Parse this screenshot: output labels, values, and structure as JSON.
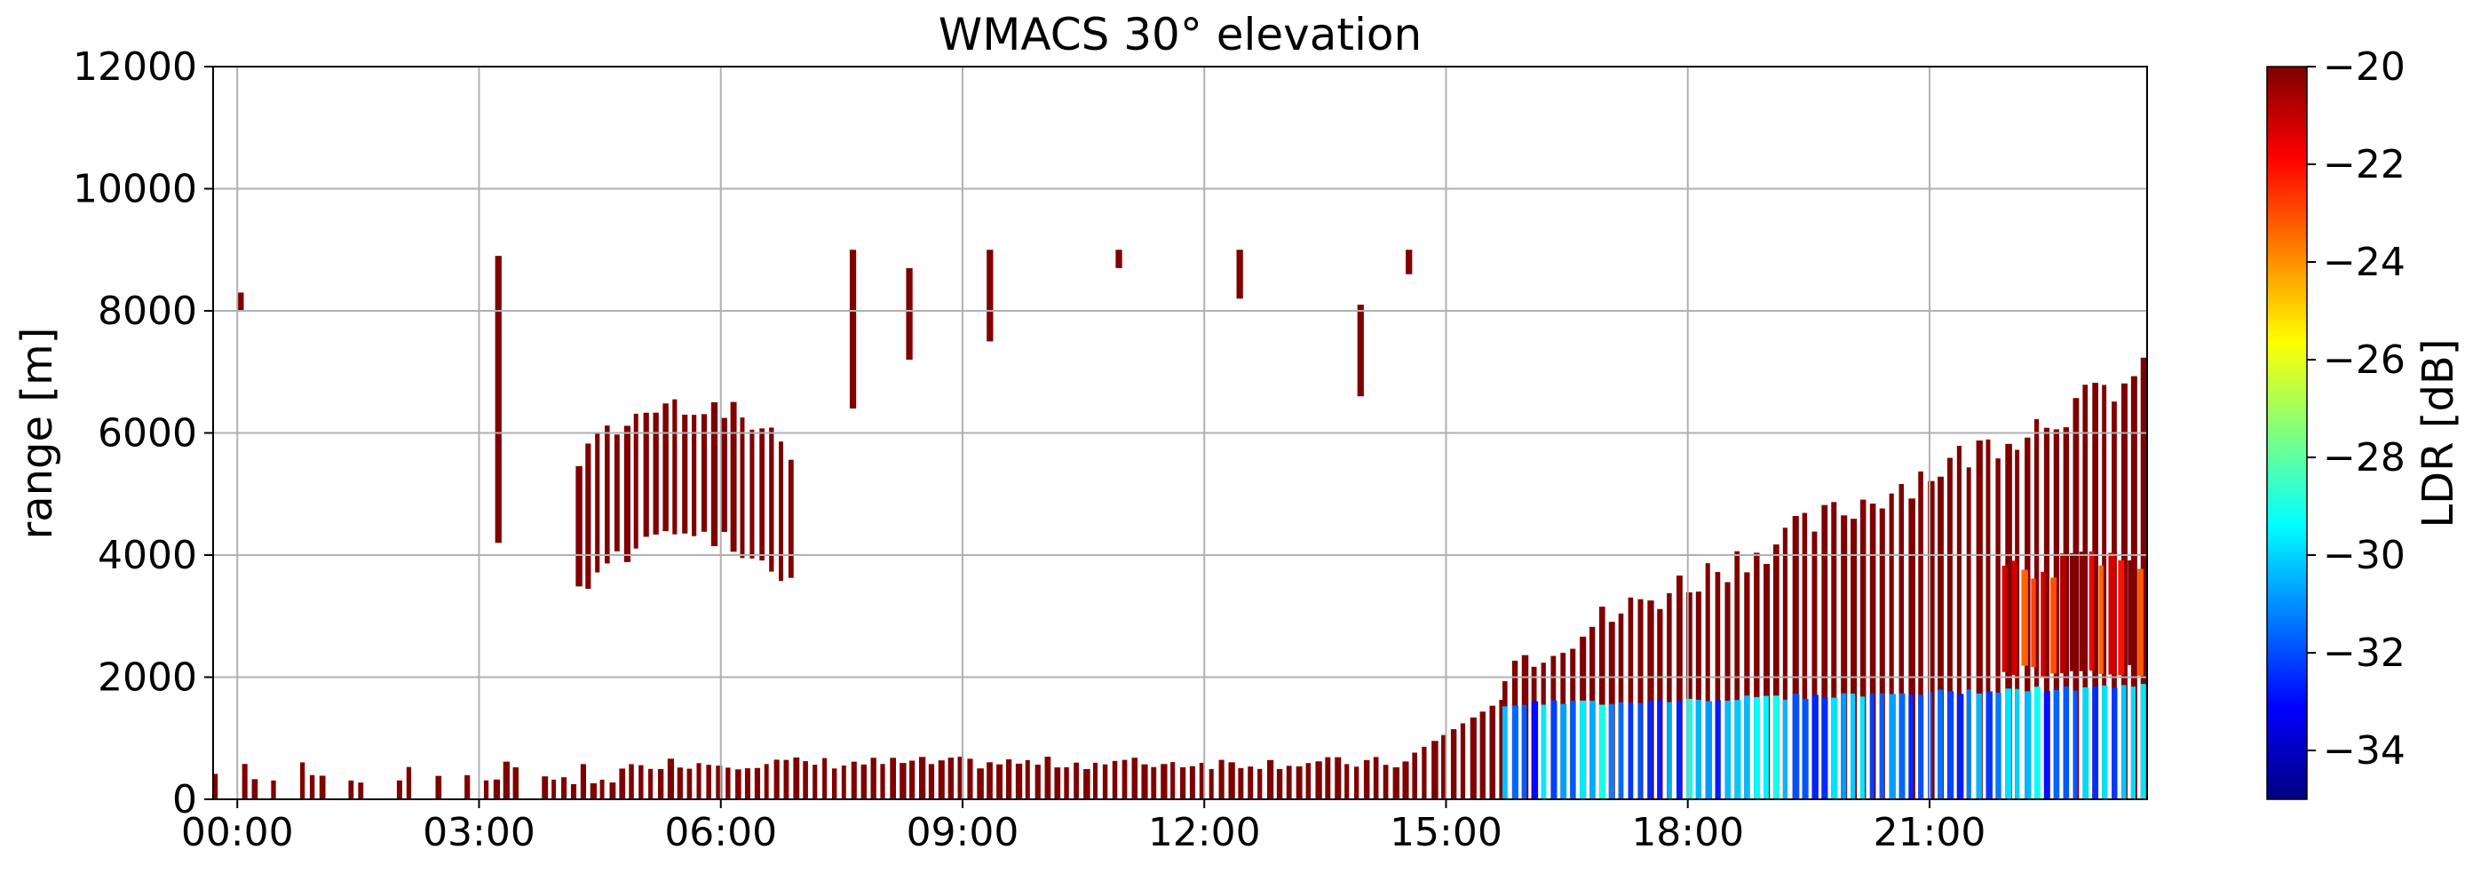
{
  "chart_data": {
    "type": "heatmap",
    "title": "WMACS 30° elevation",
    "xlabel": "",
    "ylabel": "range [m]",
    "x_ticks": [
      "00:00",
      "03:00",
      "06:00",
      "09:00",
      "12:00",
      "15:00",
      "18:00",
      "21:00"
    ],
    "x_tick_hours": [
      0,
      3,
      6,
      9,
      12,
      15,
      18,
      21
    ],
    "xlim_hours": [
      -0.3,
      23.7
    ],
    "y_ticks": [
      0,
      2000,
      4000,
      6000,
      8000,
      10000,
      12000
    ],
    "ylim": [
      0,
      12000
    ],
    "grid": true,
    "colorbar": {
      "label": "LDR [dB]",
      "ticks": [
        -20,
        -22,
        -24,
        -26,
        -28,
        -30,
        -32,
        -34
      ],
      "range": [
        -35,
        -20
      ],
      "colormap": "jet"
    },
    "regions": [
      {
        "name": "low-level echo",
        "t_start": -0.3,
        "t_end": 15.7,
        "range_top": 700,
        "ldr_db": -20
      },
      {
        "name": "morning cloud",
        "t_start": 4.2,
        "t_end": 6.9,
        "range_bottom": 3300,
        "range_top": 6200,
        "ldr_db": -20
      },
      {
        "name": "afternoon cloud",
        "t_start": 15.7,
        "t_end": 23.7,
        "range_bottom": 0,
        "range_top": 7500,
        "ldr_db": -20
      },
      {
        "name": "boundary layer",
        "t_start": 15.7,
        "t_end": 23.7,
        "range_bottom": 0,
        "range_top": 1900,
        "ldr_db": -31
      },
      {
        "name": "late evening mixed",
        "t_start": 21.9,
        "t_end": 23.7,
        "range_bottom": 2000,
        "range_top": 4200,
        "ldr_db": -22
      }
    ]
  }
}
